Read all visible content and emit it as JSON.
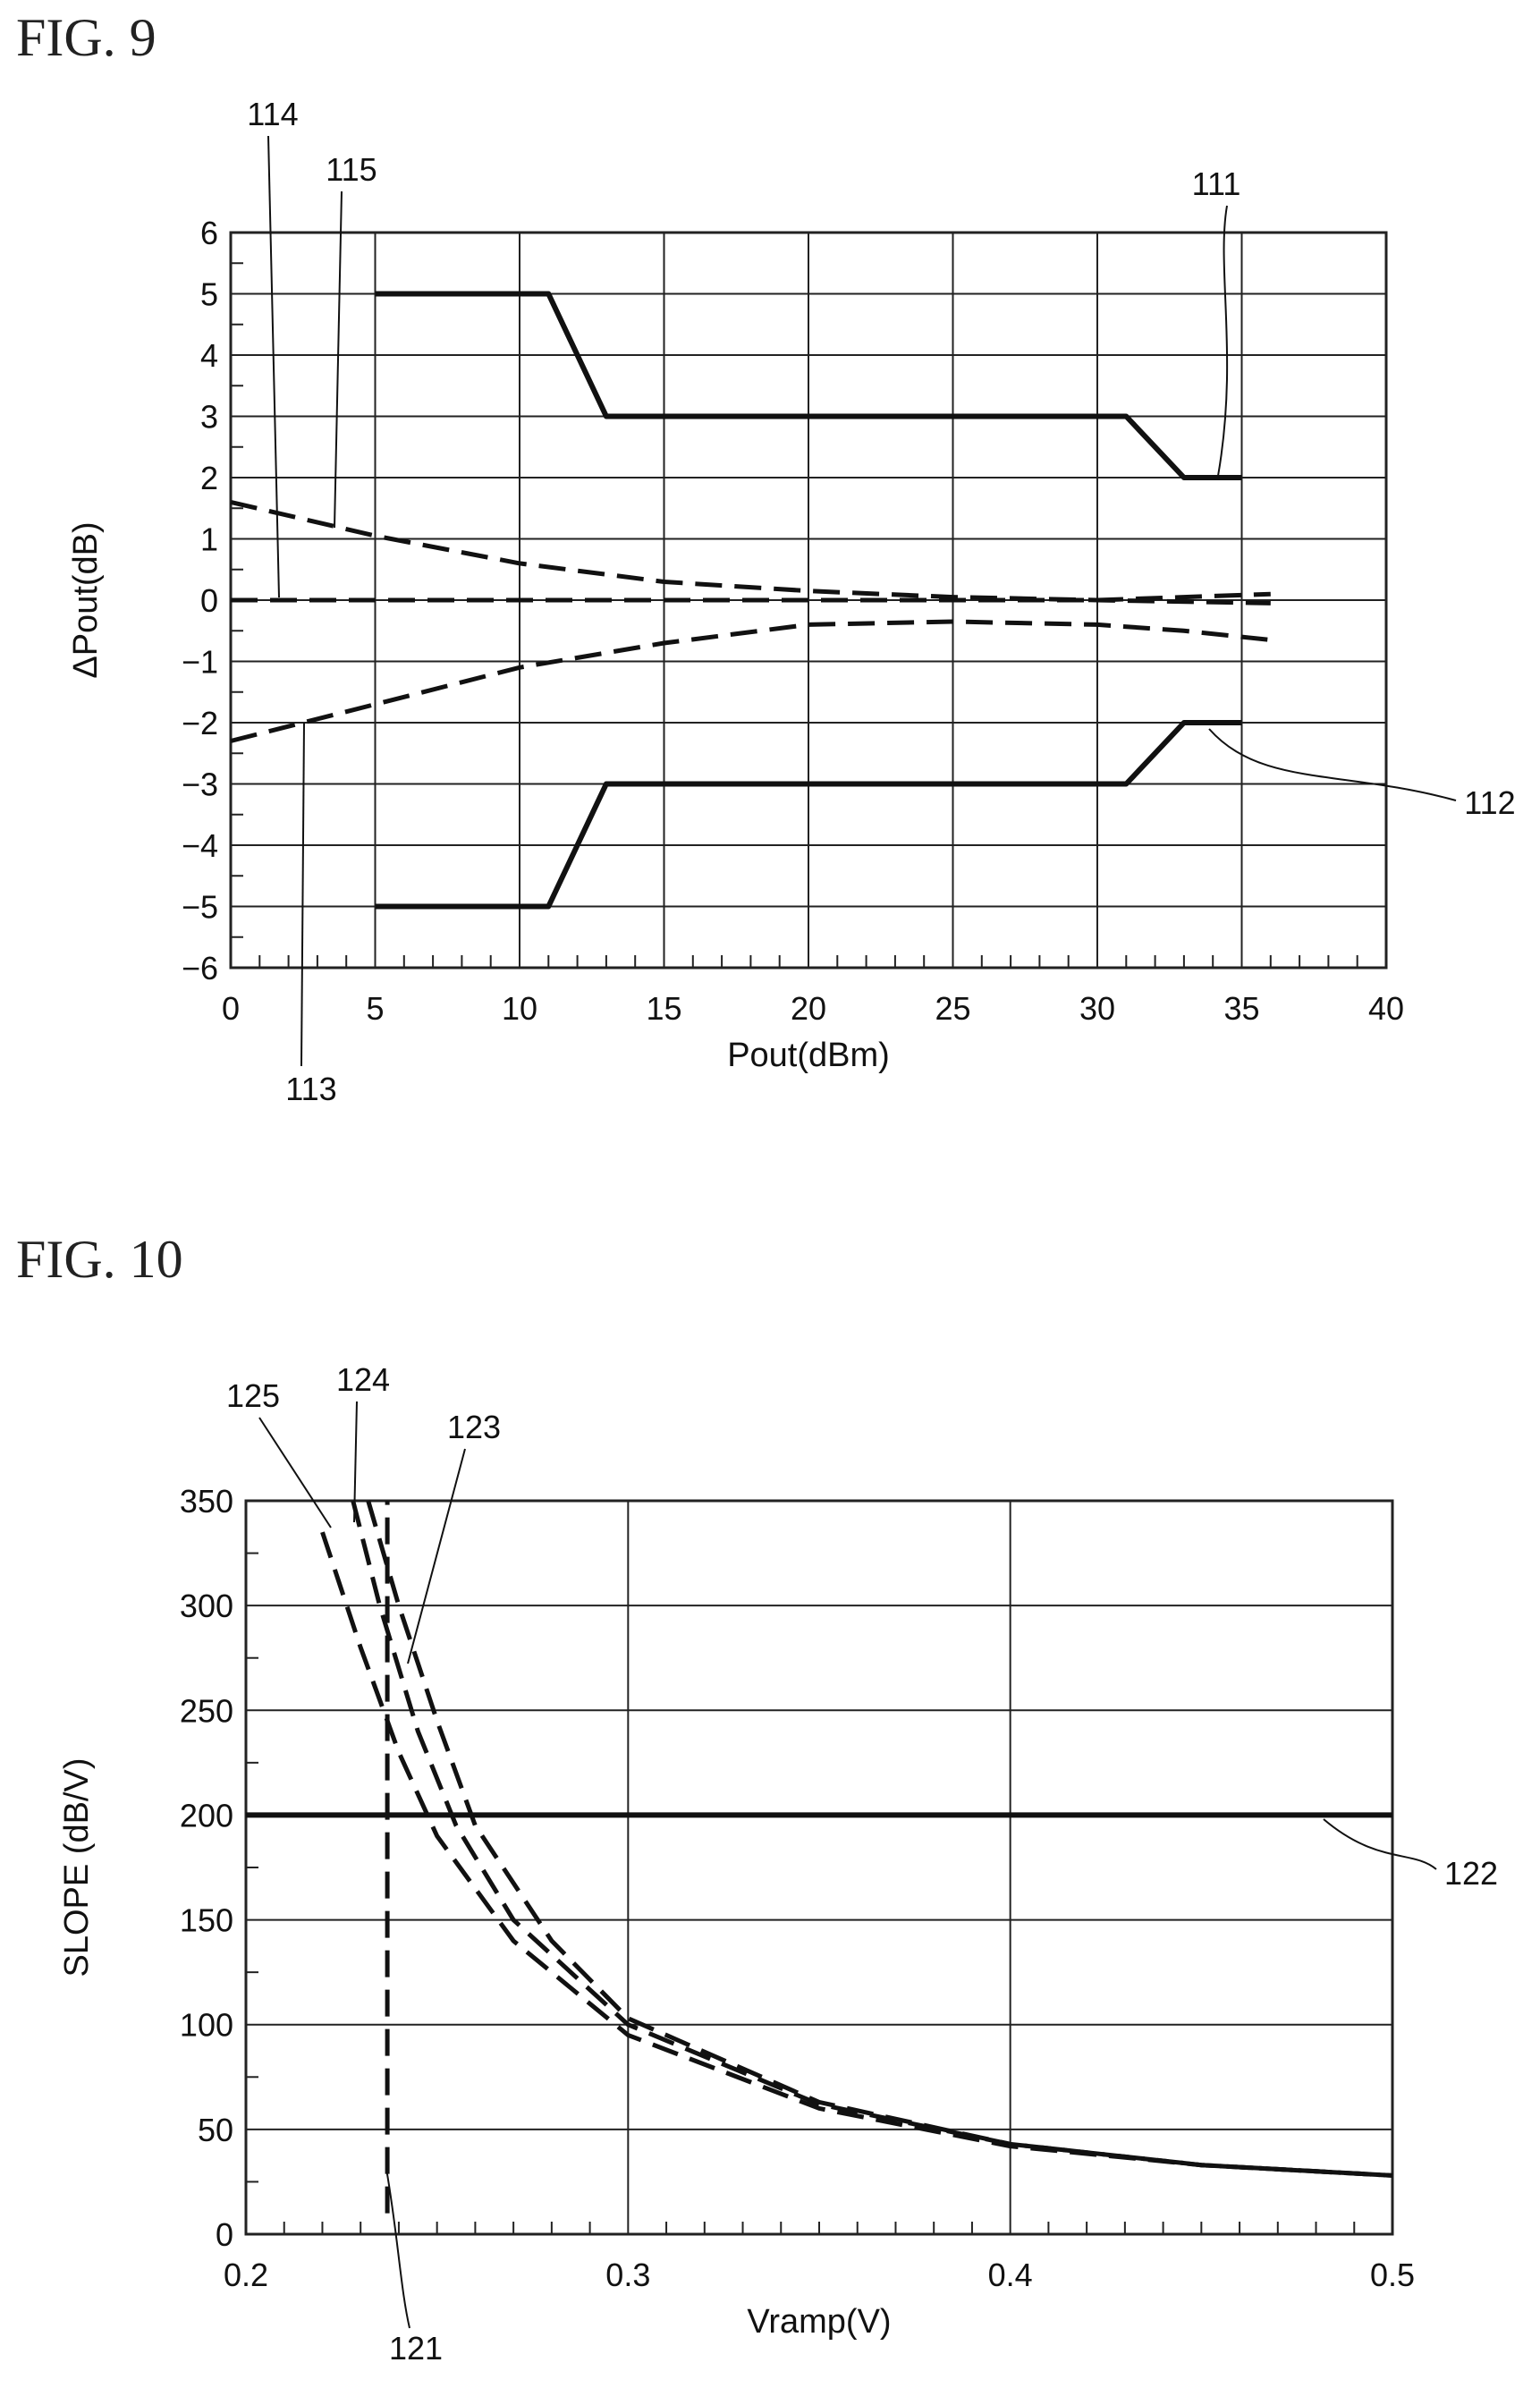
{
  "chart_data": [
    {
      "type": "line",
      "figure_label": "FIG. 9",
      "xlabel": "Pout(dBm)",
      "ylabel": "ΔPout(dB)",
      "xlim": [
        0,
        40
      ],
      "ylim": [
        -6,
        6
      ],
      "x_ticks": [
        0,
        5,
        10,
        15,
        20,
        25,
        30,
        35,
        40
      ],
      "y_ticks": [
        -6,
        -5,
        -4,
        -3,
        -2,
        -1,
        0,
        1,
        2,
        3,
        4,
        5,
        6
      ],
      "grid": true,
      "series": [
        {
          "name": "111",
          "style": "solid",
          "x": [
            5,
            11,
            13,
            31,
            33,
            35
          ],
          "y": [
            5,
            5,
            3,
            3,
            2,
            2
          ]
        },
        {
          "name": "112",
          "style": "solid",
          "x": [
            5,
            11,
            13,
            31,
            33,
            35
          ],
          "y": [
            -5,
            -5,
            -3,
            -3,
            -2,
            -2
          ]
        },
        {
          "name": "113",
          "style": "dashed",
          "x": [
            0,
            2.5,
            5,
            10,
            15,
            20,
            25,
            30,
            33,
            36
          ],
          "y": [
            -2.3,
            -2.0,
            -1.7,
            -1.1,
            -0.7,
            -0.4,
            -0.35,
            -0.4,
            -0.5,
            -0.65
          ]
        },
        {
          "name": "114",
          "style": "dashed",
          "x": [
            0,
            10,
            20,
            30,
            36
          ],
          "y": [
            0,
            0,
            0,
            0,
            0.1
          ]
        },
        {
          "name": "115",
          "style": "dashed",
          "x": [
            0,
            5,
            10,
            15,
            20,
            25,
            30,
            36
          ],
          "y": [
            1.6,
            1.05,
            0.6,
            0.3,
            0.15,
            0.05,
            0.0,
            -0.05
          ]
        }
      ],
      "reference_labels": [
        "111",
        "112",
        "113",
        "114",
        "115"
      ]
    },
    {
      "type": "line",
      "figure_label": "FIG. 10",
      "xlabel": "Vramp(V)",
      "ylabel": "SLOPE  (dB/V)",
      "xlim": [
        0.2,
        0.5
      ],
      "ylim": [
        0,
        350
      ],
      "x_ticks": [
        0.2,
        0.3,
        0.4,
        0.5
      ],
      "y_ticks": [
        0,
        50,
        100,
        150,
        200,
        250,
        300,
        350
      ],
      "grid": true,
      "series": [
        {
          "name": "121",
          "style": "dashed",
          "x": [
            0.237,
            0.237
          ],
          "y": [
            10,
            350
          ]
        },
        {
          "name": "122",
          "style": "solid",
          "x": [
            0.2,
            0.5
          ],
          "y": [
            200,
            200
          ]
        },
        {
          "name": "123",
          "style": "dashed",
          "x": [
            0.232,
            0.24,
            0.25,
            0.26,
            0.28,
            0.3,
            0.35,
            0.4,
            0.45,
            0.5
          ],
          "y": [
            350,
            300,
            245,
            195,
            140,
            103,
            63,
            43,
            33,
            28
          ]
        },
        {
          "name": "124",
          "style": "dashed",
          "x": [
            0.228,
            0.235,
            0.245,
            0.255,
            0.27,
            0.3,
            0.35,
            0.4,
            0.45,
            0.5
          ],
          "y": [
            350,
            300,
            240,
            195,
            150,
            100,
            62,
            43,
            33,
            28
          ]
        },
        {
          "name": "125",
          "style": "dashed",
          "x": [
            0.22,
            0.23,
            0.24,
            0.25,
            0.27,
            0.3,
            0.35,
            0.4,
            0.45,
            0.5
          ],
          "y": [
            335,
            280,
            230,
            190,
            140,
            95,
            60,
            42,
            33,
            28
          ]
        }
      ],
      "reference_labels": [
        "121",
        "122",
        "123",
        "124",
        "125"
      ]
    }
  ]
}
